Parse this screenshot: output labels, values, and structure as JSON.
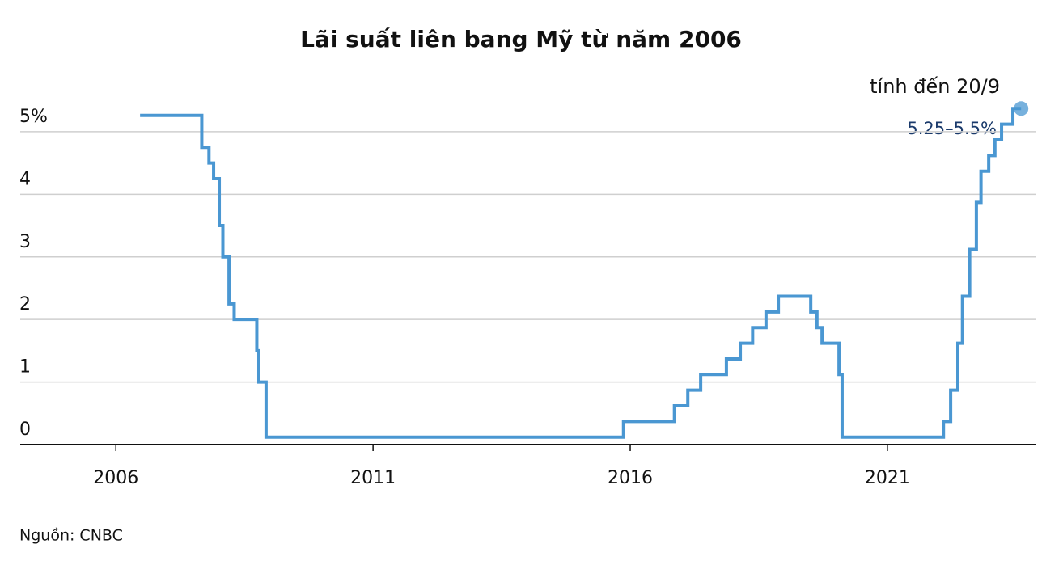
{
  "chart_data": {
    "type": "step-line",
    "title": "Lãi suất liên bang Mỹ từ năm 2006",
    "annotations": [
      "tính đến 20/9",
      "5.25–5.5%"
    ],
    "source": "Nguồn: CNBC",
    "xlim": [
      2004.14,
      2023.88
    ],
    "ylim": [
      0,
      5.8
    ],
    "xticks": [
      2006,
      2011,
      2016,
      2021
    ],
    "yticks": [
      0,
      1,
      2,
      3,
      4,
      {
        "value": 5,
        "label": "5%"
      }
    ],
    "grid": true,
    "series": [
      {
        "color": "#4a97d2",
        "x": [
          2006.47,
          2007.67,
          2007.81,
          2007.9,
          2008.01,
          2008.08,
          2008.2,
          2008.3,
          2008.74,
          2008.78,
          2008.92,
          2015.87,
          2016.86,
          2017.12,
          2017.37,
          2017.87,
          2018.14,
          2018.38,
          2018.64,
          2018.88,
          2019.51,
          2019.63,
          2019.73,
          2020.06,
          2020.12,
          2022.09,
          2022.23,
          2022.37,
          2022.46,
          2022.6,
          2022.73,
          2022.82,
          2022.97,
          2023.09,
          2023.22,
          2023.44,
          2023.6
        ],
        "values": [
          5.26,
          4.75,
          4.5,
          4.25,
          3.5,
          3.0,
          2.25,
          2.0,
          1.5,
          1.0,
          0.12,
          0.37,
          0.62,
          0.87,
          1.12,
          1.37,
          1.62,
          1.87,
          2.12,
          2.37,
          2.12,
          1.87,
          1.62,
          1.12,
          0.12,
          0.37,
          0.87,
          1.62,
          2.37,
          3.12,
          3.87,
          4.37,
          4.62,
          4.87,
          5.12,
          5.37,
          5.37
        ]
      }
    ]
  }
}
